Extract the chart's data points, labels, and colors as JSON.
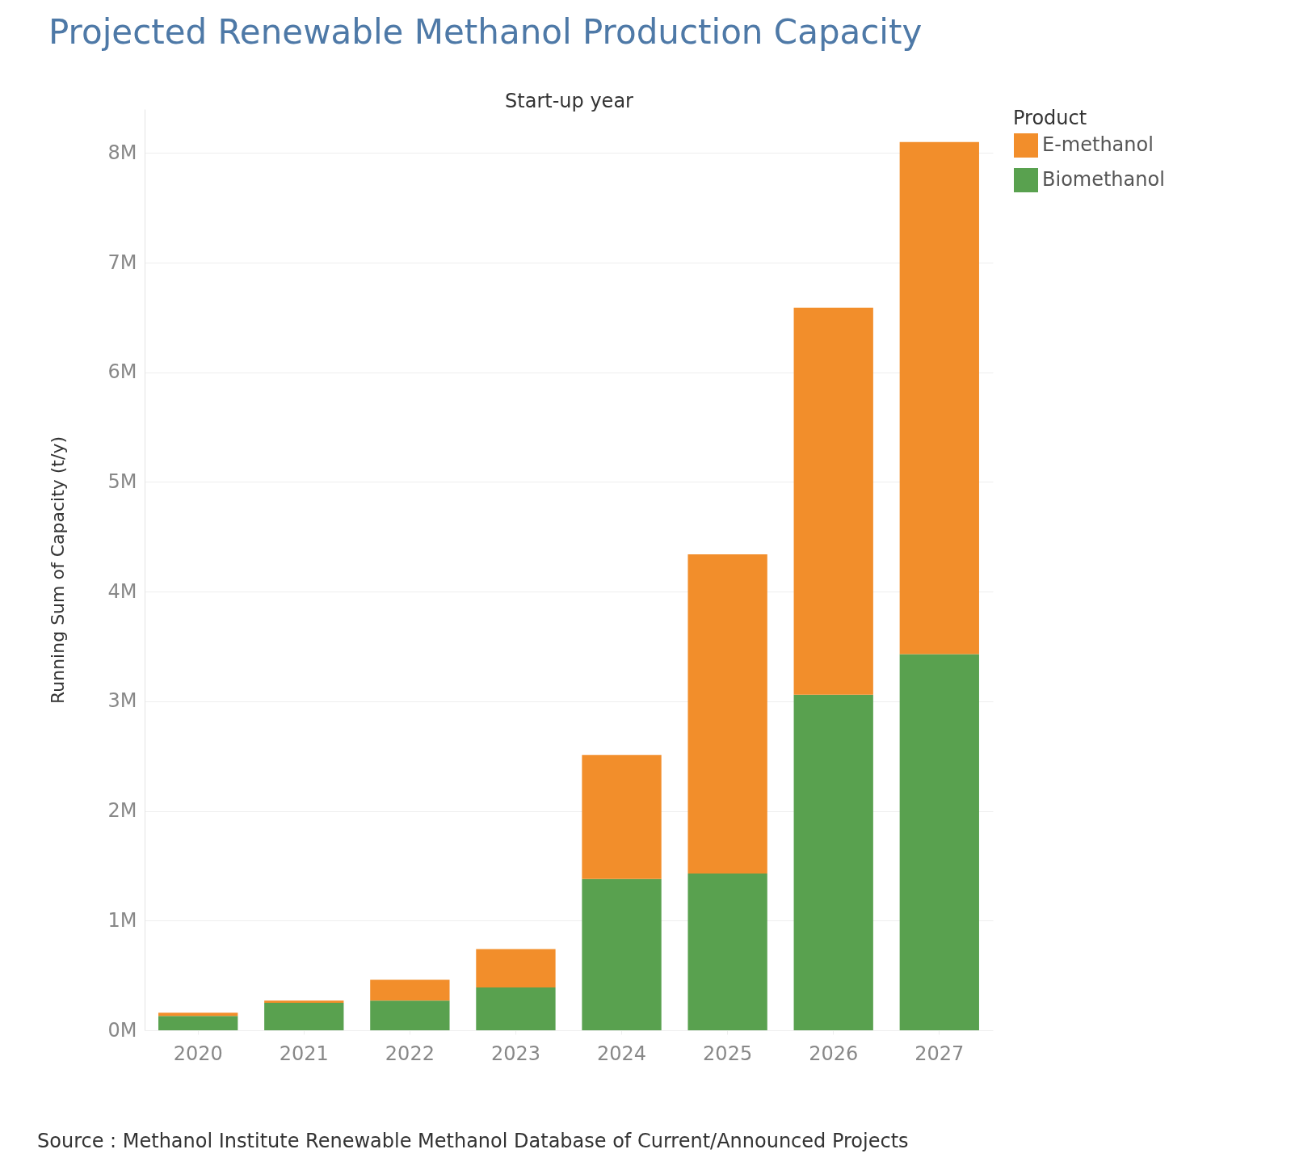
{
  "chart_data": {
    "type": "bar",
    "title": "Projected Renewable Methanol Production Capacity",
    "xlabel": "Start-up year",
    "ylabel": "Running Sum of Capacity (t/y)",
    "legend_title": "Product",
    "categories": [
      "2020",
      "2021",
      "2022",
      "2023",
      "2024",
      "2025",
      "2026",
      "2027"
    ],
    "series": [
      {
        "name": "Biomethanol",
        "color": "#59a14f",
        "values": [
          130000,
          250000,
          270000,
          390000,
          1380000,
          1430000,
          3060000,
          3430000
        ]
      },
      {
        "name": "E-methanol",
        "color": "#f28e2b",
        "values": [
          30000,
          20000,
          190000,
          350000,
          1130000,
          2910000,
          3530000,
          4670000
        ]
      }
    ],
    "stacked": true,
    "ylim": [
      0,
      8400000
    ],
    "yticks": [
      {
        "value": 0,
        "label": "0M"
      },
      {
        "value": 1000000,
        "label": "1M"
      },
      {
        "value": 2000000,
        "label": "2M"
      },
      {
        "value": 3000000,
        "label": "3M"
      },
      {
        "value": 4000000,
        "label": "4M"
      },
      {
        "value": 5000000,
        "label": "5M"
      },
      {
        "value": 6000000,
        "label": "6M"
      },
      {
        "value": 7000000,
        "label": "7M"
      },
      {
        "value": 8000000,
        "label": "8M"
      }
    ],
    "grid": "y",
    "legend": "top right",
    "annotations": [
      "Source : Methanol Institute Renewable Methanol Database of Current/Announced Projects"
    ]
  }
}
